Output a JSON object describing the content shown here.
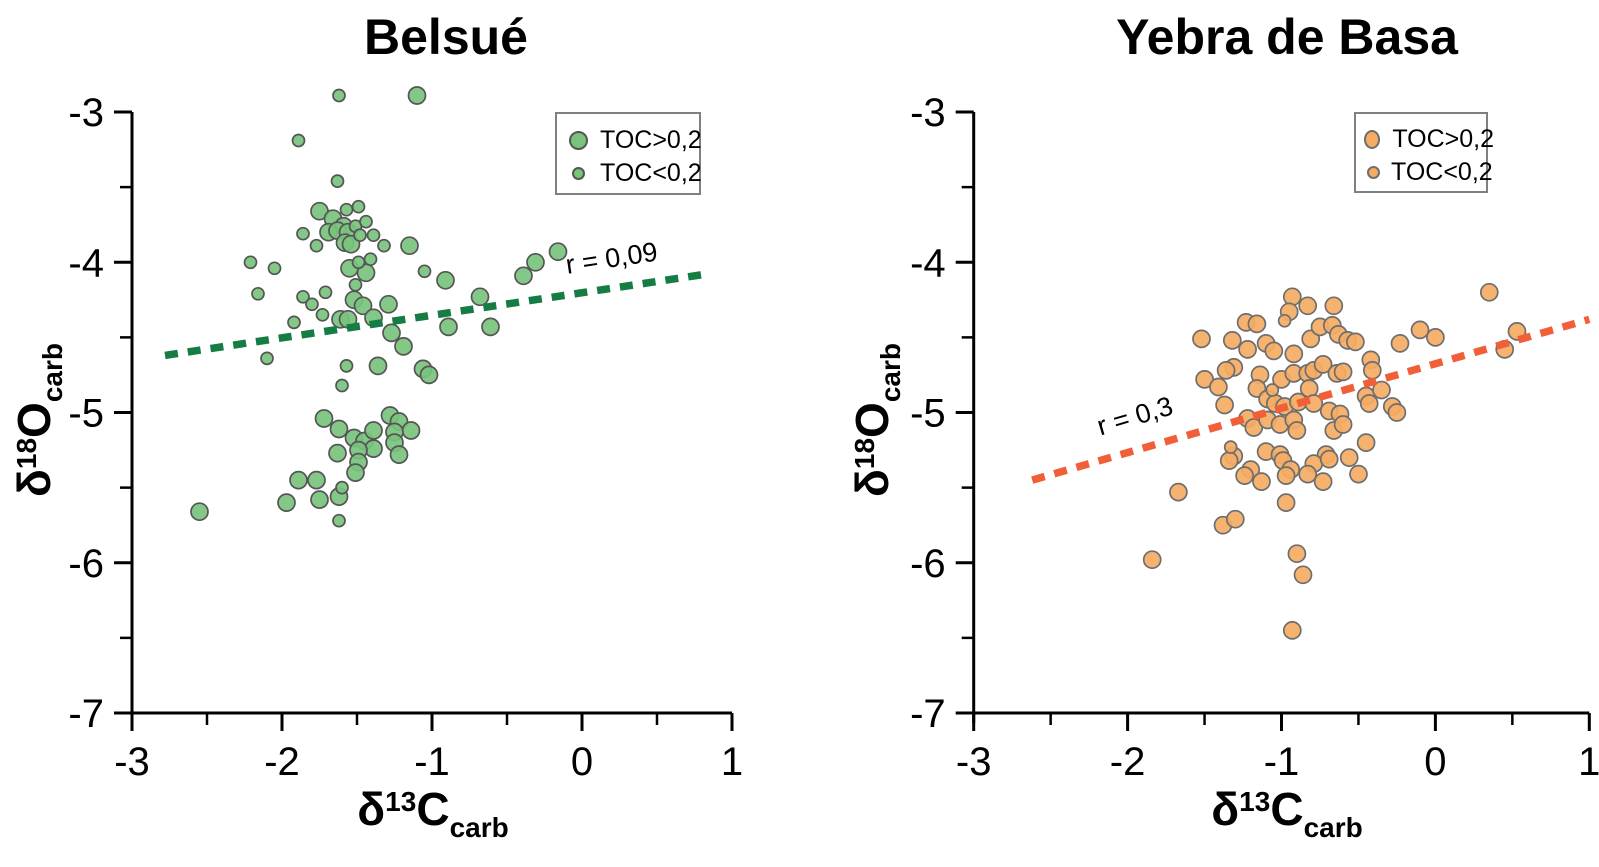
{
  "chart_data": [
    {
      "type": "scatter",
      "title": "Belsué",
      "xlabel_parts": {
        "delta": "δ",
        "sup": "13",
        "main": "C",
        "sub": "carb"
      },
      "ylabel_parts": {
        "delta": "δ",
        "sup": "18",
        "main": "O",
        "sub": "carb"
      },
      "xlim": [
        -3,
        1
      ],
      "ylim": [
        -7,
        -3
      ],
      "x_ticks": [
        -3,
        -2,
        -1,
        0,
        1
      ],
      "y_ticks": [
        -3,
        -4,
        -5,
        -6,
        -7
      ],
      "x_minor_ticks": [
        -2.5,
        -1.5,
        -0.5,
        0.5
      ],
      "y_minor_ticks": [
        -3.5,
        -4.5,
        -5.5,
        -6.5
      ],
      "grid": false,
      "legend_position": "upper-right",
      "colors": {
        "marker_fill": "#79c37d",
        "marker_stroke": "#555555",
        "trend": "#157c43"
      },
      "trend": {
        "label": "r = 0,09",
        "x1": -2.78,
        "y1": -4.62,
        "x2": 0.82,
        "y2": -4.08
      },
      "series": [
        {
          "name": "TOC>0,2",
          "marker": "large",
          "points": [
            [
              -1.1,
              -2.89
            ],
            [
              -1.75,
              -3.66
            ],
            [
              -1.66,
              -3.71
            ],
            [
              -1.59,
              -3.76
            ],
            [
              -1.69,
              -3.8
            ],
            [
              -1.63,
              -3.79
            ],
            [
              -1.56,
              -3.8
            ],
            [
              -1.58,
              -3.87
            ],
            [
              -1.54,
              -3.88
            ],
            [
              -1.15,
              -3.89
            ],
            [
              -1.55,
              -4.04
            ],
            [
              -1.44,
              -4.07
            ],
            [
              -0.91,
              -4.12
            ],
            [
              -0.31,
              -4.0
            ],
            [
              -0.16,
              -3.93
            ],
            [
              -0.39,
              -4.09
            ],
            [
              -1.52,
              -4.25
            ],
            [
              -1.46,
              -4.29
            ],
            [
              -1.29,
              -4.28
            ],
            [
              -1.61,
              -4.38
            ],
            [
              -1.56,
              -4.38
            ],
            [
              -1.39,
              -4.37
            ],
            [
              -1.27,
              -4.47
            ],
            [
              -1.19,
              -4.56
            ],
            [
              -0.89,
              -4.43
            ],
            [
              -0.68,
              -4.23
            ],
            [
              -0.61,
              -4.43
            ],
            [
              -1.36,
              -4.69
            ],
            [
              -1.06,
              -4.71
            ],
            [
              -1.02,
              -4.75
            ],
            [
              -1.72,
              -5.04
            ],
            [
              -1.62,
              -5.11
            ],
            [
              -1.52,
              -5.17
            ],
            [
              -1.45,
              -5.19
            ],
            [
              -1.39,
              -5.12
            ],
            [
              -1.28,
              -5.02
            ],
            [
              -1.22,
              -5.06
            ],
            [
              -1.14,
              -5.12
            ],
            [
              -1.25,
              -5.13
            ],
            [
              -1.25,
              -5.2
            ],
            [
              -1.39,
              -5.24
            ],
            [
              -1.22,
              -5.28
            ],
            [
              -1.63,
              -5.27
            ],
            [
              -1.49,
              -5.25
            ],
            [
              -1.49,
              -5.33
            ],
            [
              -1.51,
              -5.4
            ],
            [
              -1.89,
              -5.45
            ],
            [
              -1.77,
              -5.45
            ],
            [
              -1.62,
              -5.56
            ],
            [
              -1.75,
              -5.58
            ],
            [
              -1.97,
              -5.6
            ],
            [
              -2.55,
              -5.66
            ]
          ]
        },
        {
          "name": "TOC<0,2",
          "marker": "small",
          "points": [
            [
              -1.62,
              -2.89
            ],
            [
              -1.89,
              -3.19
            ],
            [
              -1.63,
              -3.46
            ],
            [
              -1.57,
              -3.65
            ],
            [
              -1.49,
              -3.63
            ],
            [
              -1.51,
              -3.76
            ],
            [
              -1.44,
              -3.73
            ],
            [
              -1.48,
              -3.82
            ],
            [
              -1.86,
              -3.81
            ],
            [
              -1.77,
              -3.89
            ],
            [
              -1.39,
              -3.82
            ],
            [
              -1.32,
              -3.89
            ],
            [
              -2.21,
              -4.0
            ],
            [
              -2.05,
              -4.04
            ],
            [
              -1.49,
              -4.0
            ],
            [
              -1.41,
              -3.98
            ],
            [
              -1.05,
              -4.06
            ],
            [
              -1.51,
              -4.15
            ],
            [
              -2.16,
              -4.21
            ],
            [
              -1.86,
              -4.23
            ],
            [
              -1.8,
              -4.28
            ],
            [
              -1.71,
              -4.2
            ],
            [
              -1.73,
              -4.35
            ],
            [
              -1.92,
              -4.4
            ],
            [
              -2.1,
              -4.64
            ],
            [
              -1.57,
              -4.69
            ],
            [
              -1.6,
              -4.82
            ],
            [
              -1.6,
              -5.5
            ],
            [
              -1.62,
              -5.72
            ]
          ]
        }
      ],
      "legend": {
        "items": [
          {
            "label": "TOC>0,2",
            "marker": "large"
          },
          {
            "label": "TOC<0,2",
            "marker": "small"
          }
        ]
      }
    },
    {
      "type": "scatter",
      "title": "Yebra de Basa",
      "xlabel_parts": {
        "delta": "δ",
        "sup": "13",
        "main": "C",
        "sub": "carb"
      },
      "ylabel_parts": {
        "delta": "δ",
        "sup": "18",
        "main": "O",
        "sub": "carb"
      },
      "xlim": [
        -3,
        1
      ],
      "ylim": [
        -7,
        -3
      ],
      "x_ticks": [
        -3,
        -2,
        -1,
        0,
        1
      ],
      "y_ticks": [
        -3,
        -4,
        -5,
        -6,
        -7
      ],
      "x_minor_ticks": [
        -2.5,
        -1.5,
        -0.5,
        0.5
      ],
      "y_minor_ticks": [
        -3.5,
        -4.5,
        -5.5,
        -6.5
      ],
      "grid": false,
      "legend_position": "upper-right",
      "colors": {
        "marker_fill": "#f5ab63",
        "marker_stroke": "#6e6e6e",
        "trend": "#f15f38"
      },
      "trend": {
        "label": "r = 0,3",
        "x1": -2.62,
        "y1": -5.45,
        "x2": 1.0,
        "y2": -4.38
      },
      "series": [
        {
          "name": "TOC>0,2",
          "marker": "large",
          "points": [
            [
              0.35,
              -4.2
            ],
            [
              -0.93,
              -4.23
            ],
            [
              -0.83,
              -4.29
            ],
            [
              -0.66,
              -4.29
            ],
            [
              -0.95,
              -4.33
            ],
            [
              -1.23,
              -4.4
            ],
            [
              -1.16,
              -4.41
            ],
            [
              -1.52,
              -4.51
            ],
            [
              -1.32,
              -4.52
            ],
            [
              -1.22,
              -4.58
            ],
            [
              -1.1,
              -4.54
            ],
            [
              -1.05,
              -4.59
            ],
            [
              -0.92,
              -4.61
            ],
            [
              -0.81,
              -4.51
            ],
            [
              -0.75,
              -4.43
            ],
            [
              -0.67,
              -4.42
            ],
            [
              -0.63,
              -4.48
            ],
            [
              -0.57,
              -4.52
            ],
            [
              -0.52,
              -4.53
            ],
            [
              -0.42,
              -4.65
            ],
            [
              -0.41,
              -4.72
            ],
            [
              -0.23,
              -4.54
            ],
            [
              -0.1,
              -4.45
            ],
            [
              0.0,
              -4.5
            ],
            [
              0.45,
              -4.58
            ],
            [
              0.53,
              -4.46
            ],
            [
              -1.31,
              -4.7
            ],
            [
              -1.36,
              -4.72
            ],
            [
              -1.5,
              -4.78
            ],
            [
              -1.41,
              -4.83
            ],
            [
              -1.37,
              -4.95
            ],
            [
              -1.14,
              -4.75
            ],
            [
              -1.0,
              -4.78
            ],
            [
              -0.92,
              -4.74
            ],
            [
              -0.83,
              -4.74
            ],
            [
              -0.79,
              -4.72
            ],
            [
              -0.73,
              -4.68
            ],
            [
              -0.64,
              -4.74
            ],
            [
              -0.6,
              -4.73
            ],
            [
              -0.45,
              -4.89
            ],
            [
              -0.43,
              -4.94
            ],
            [
              -0.35,
              -4.85
            ],
            [
              -0.28,
              -4.96
            ],
            [
              -0.25,
              -5.0
            ],
            [
              -1.16,
              -4.84
            ],
            [
              -1.09,
              -4.91
            ],
            [
              -1.04,
              -4.94
            ],
            [
              -0.98,
              -4.96
            ],
            [
              -0.89,
              -4.93
            ],
            [
              -0.82,
              -4.84
            ],
            [
              -0.79,
              -4.94
            ],
            [
              -0.69,
              -4.99
            ],
            [
              -0.62,
              -5.01
            ],
            [
              -1.22,
              -5.04
            ],
            [
              -1.18,
              -5.1
            ],
            [
              -1.09,
              -5.05
            ],
            [
              -1.01,
              -5.08
            ],
            [
              -0.92,
              -5.05
            ],
            [
              -0.9,
              -5.12
            ],
            [
              -0.66,
              -5.12
            ],
            [
              -0.6,
              -5.08
            ],
            [
              -0.45,
              -5.2
            ],
            [
              -1.31,
              -5.29
            ],
            [
              -1.1,
              -5.26
            ],
            [
              -1.01,
              -5.28
            ],
            [
              -0.71,
              -5.28
            ],
            [
              -0.56,
              -5.3
            ],
            [
              -1.34,
              -5.32
            ],
            [
              -1.2,
              -5.38
            ],
            [
              -0.99,
              -5.32
            ],
            [
              -0.94,
              -5.38
            ],
            [
              -0.79,
              -5.34
            ],
            [
              -0.69,
              -5.31
            ],
            [
              -1.67,
              -5.53
            ],
            [
              -1.24,
              -5.42
            ],
            [
              -1.13,
              -5.46
            ],
            [
              -0.97,
              -5.42
            ],
            [
              -0.83,
              -5.41
            ],
            [
              -0.73,
              -5.46
            ],
            [
              -0.5,
              -5.41
            ],
            [
              -0.97,
              -5.6
            ],
            [
              -1.38,
              -5.75
            ],
            [
              -1.3,
              -5.71
            ],
            [
              -1.84,
              -5.98
            ],
            [
              -0.9,
              -5.94
            ],
            [
              -0.86,
              -6.08
            ],
            [
              -0.93,
              -6.45
            ]
          ]
        },
        {
          "name": "TOC<0,2",
          "marker": "small",
          "points": [
            [
              -0.98,
              -4.39
            ],
            [
              -1.06,
              -4.85
            ],
            [
              -1.33,
              -5.23
            ]
          ]
        }
      ],
      "legend": {
        "items": [
          {
            "label": "TOC>0,2",
            "marker": "large"
          },
          {
            "label": "TOC<0,2",
            "marker": "small"
          }
        ]
      }
    }
  ]
}
